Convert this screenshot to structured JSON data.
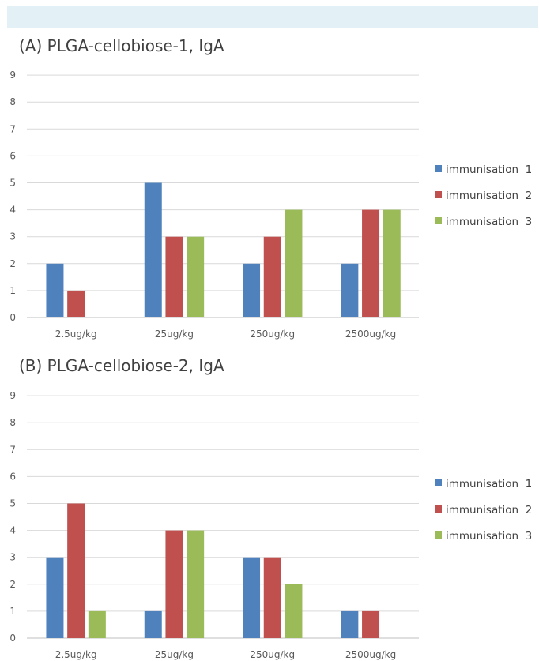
{
  "colors": {
    "series": [
      "#4f81bd",
      "#c0504d",
      "#9bbb59"
    ],
    "gridline": "#d9d9d9",
    "axis": "#bfbfbf",
    "band": "#e3f0f6"
  },
  "chart_data": [
    {
      "type": "bar",
      "title": "(A) PLGA-cellobiose-1, IgA",
      "categories": [
        "2.5ug/kg",
        "25ug/kg",
        "250ug/kg",
        "2500ug/kg"
      ],
      "series": [
        {
          "name": "immunisation  1",
          "values": [
            2,
            5,
            2,
            2
          ]
        },
        {
          "name": "immunisation  2",
          "values": [
            1,
            3,
            3,
            4
          ]
        },
        {
          "name": "immunisation  3",
          "values": [
            0,
            3,
            4,
            4
          ]
        }
      ],
      "ylim": [
        0,
        9
      ],
      "yticks": [
        "0",
        "1",
        "2",
        "3",
        "4",
        "5",
        "6",
        "7",
        "8",
        "9"
      ],
      "grid": true,
      "legend_position": "right"
    },
    {
      "type": "bar",
      "title": "(B) PLGA-cellobiose-2, IgA",
      "categories": [
        "2.5ug/kg",
        "25ug/kg",
        "250ug/kg",
        "2500ug/kg"
      ],
      "series": [
        {
          "name": "immunisation  1",
          "values": [
            3,
            1,
            3,
            1
          ]
        },
        {
          "name": "immunisation  2",
          "values": [
            5,
            4,
            3,
            1
          ]
        },
        {
          "name": "immunisation  3",
          "values": [
            1,
            4,
            2,
            0
          ]
        }
      ],
      "ylim": [
        0,
        9
      ],
      "yticks": [
        "0",
        "1",
        "2",
        "3",
        "4",
        "5",
        "6",
        "7",
        "8",
        "9"
      ],
      "grid": true,
      "legend_position": "right"
    }
  ]
}
